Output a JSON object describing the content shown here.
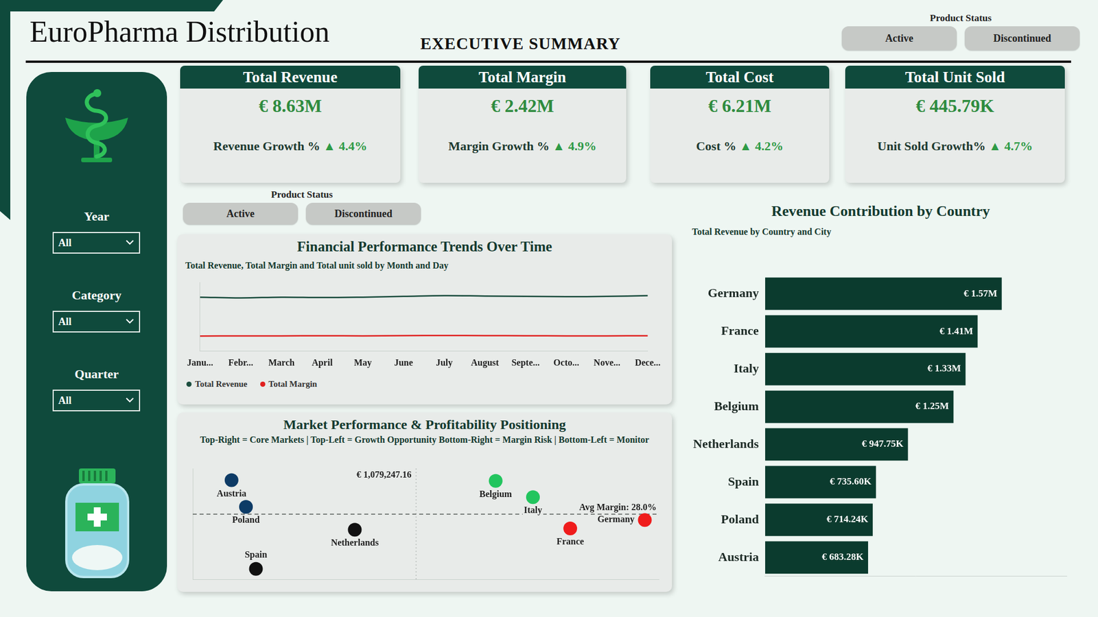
{
  "header": {
    "title": "EuroPharma Distribution",
    "subtitle": "EXECUTIVE SUMMARY"
  },
  "product_status_slicers": [
    {
      "label": "Product Status",
      "options": [
        "Active",
        "Discontinued"
      ]
    },
    {
      "label": "Product Status",
      "options": [
        "Active",
        "Discontinued"
      ]
    }
  ],
  "filters": [
    {
      "label": "Year",
      "value": "All"
    },
    {
      "label": "Category",
      "value": "All"
    },
    {
      "label": "Quarter",
      "value": "All"
    }
  ],
  "kpis": [
    {
      "title": "Total Revenue",
      "value": "€ 8.63M",
      "growth_label": "Revenue Growth %",
      "growth": "▲ 4.4%"
    },
    {
      "title": "Total Margin",
      "value": "€ 2.42M",
      "growth_label": "Margin Growth %",
      "growth": "▲ 4.9%"
    },
    {
      "title": "Total Cost",
      "value": "€ 6.21M",
      "growth_label": "Cost %",
      "growth": "▲ 4.2%"
    },
    {
      "title": "Total Unit Sold",
      "value": "€ 445.79K",
      "growth_label": "Unit Sold Growth%",
      "growth": "▲ 4.7%"
    }
  ],
  "chart_data": [
    {
      "type": "line",
      "title": "Financial Performance Trends Over Time",
      "subtitle": "Total Revenue, Total Margin and Total unit sold by Month and Day",
      "categories": [
        "Janu...",
        "Febr...",
        "March",
        "April",
        "May",
        "June",
        "July",
        "August",
        "Septe...",
        "Octo...",
        "Nove...",
        "Dece..."
      ],
      "series": [
        {
          "name": "Total Revenue",
          "color": "#1b4d3e",
          "values": [
            705000,
            695000,
            705000,
            700000,
            705000,
            715000,
            725000,
            720000,
            715000,
            712000,
            715000,
            725000
          ]
        },
        {
          "name": "Total Margin",
          "color": "#e0201f",
          "values": [
            198000,
            200000,
            200000,
            202000,
            200000,
            204000,
            206000,
            204000,
            202000,
            200000,
            200000,
            202000
          ]
        }
      ],
      "ylim": [
        0,
        900000
      ],
      "tick_labels": "x",
      "grid": false,
      "legend": "bottom-left"
    },
    {
      "type": "scatter",
      "title": "Market Performance & Profitability Positioning",
      "subtitle": "Top-Right = Core Markets | Top-Left = Growth Opportunity Bottom-Right = Margin Risk | Bottom-Left = Monitor",
      "categories": [
        "Austria",
        "Poland",
        "Spain",
        "Netherlands",
        "Belgium",
        "Italy",
        "France",
        "Germany"
      ],
      "x": [
        683280,
        714240,
        735600,
        947750,
        1250000,
        1330000,
        1410000,
        1570000
      ],
      "values": [
        33.2,
        29.1,
        19.6,
        25.6,
        33.1,
        30.6,
        25.8,
        27.1
      ],
      "colors": [
        "#0d3b66",
        "#0d3b66",
        "#111111",
        "#111111",
        "#22c55e",
        "#22c55e",
        "#ef1c1c",
        "#ef1c1c"
      ],
      "xlim": [
        600000,
        1600000
      ],
      "ylim": [
        18,
        35
      ],
      "tick_labels": false,
      "grid": false,
      "reference_lines": [
        {
          "axis": "x",
          "value": 1079247.16,
          "label": "€ 1,079,247.16"
        },
        {
          "axis": "y",
          "value": 28.0,
          "label": "Avg Margin: 28.0%"
        }
      ]
    },
    {
      "type": "bar",
      "orientation": "horizontal",
      "title": "Revenue Contribution by Country",
      "subtitle": "Total Revenue by Country and City",
      "categories": [
        "Germany",
        "France",
        "Italy",
        "Belgium",
        "Netherlands",
        "Spain",
        "Poland",
        "Austria"
      ],
      "values": [
        1570000,
        1410000,
        1330000,
        1250000,
        947750,
        735600,
        714240,
        683280
      ],
      "value_labels": [
        "€ 1.57M",
        "€ 1.41M",
        "€ 1.33M",
        "€ 1.25M",
        "€ 947.75K",
        "€ 735.60K",
        "€ 714.24K",
        "€ 683.28K"
      ],
      "color": "#0b3b2e",
      "xlim": [
        0,
        2000000
      ],
      "tick_labels": "y",
      "grid": false,
      "data_labels": true
    }
  ]
}
